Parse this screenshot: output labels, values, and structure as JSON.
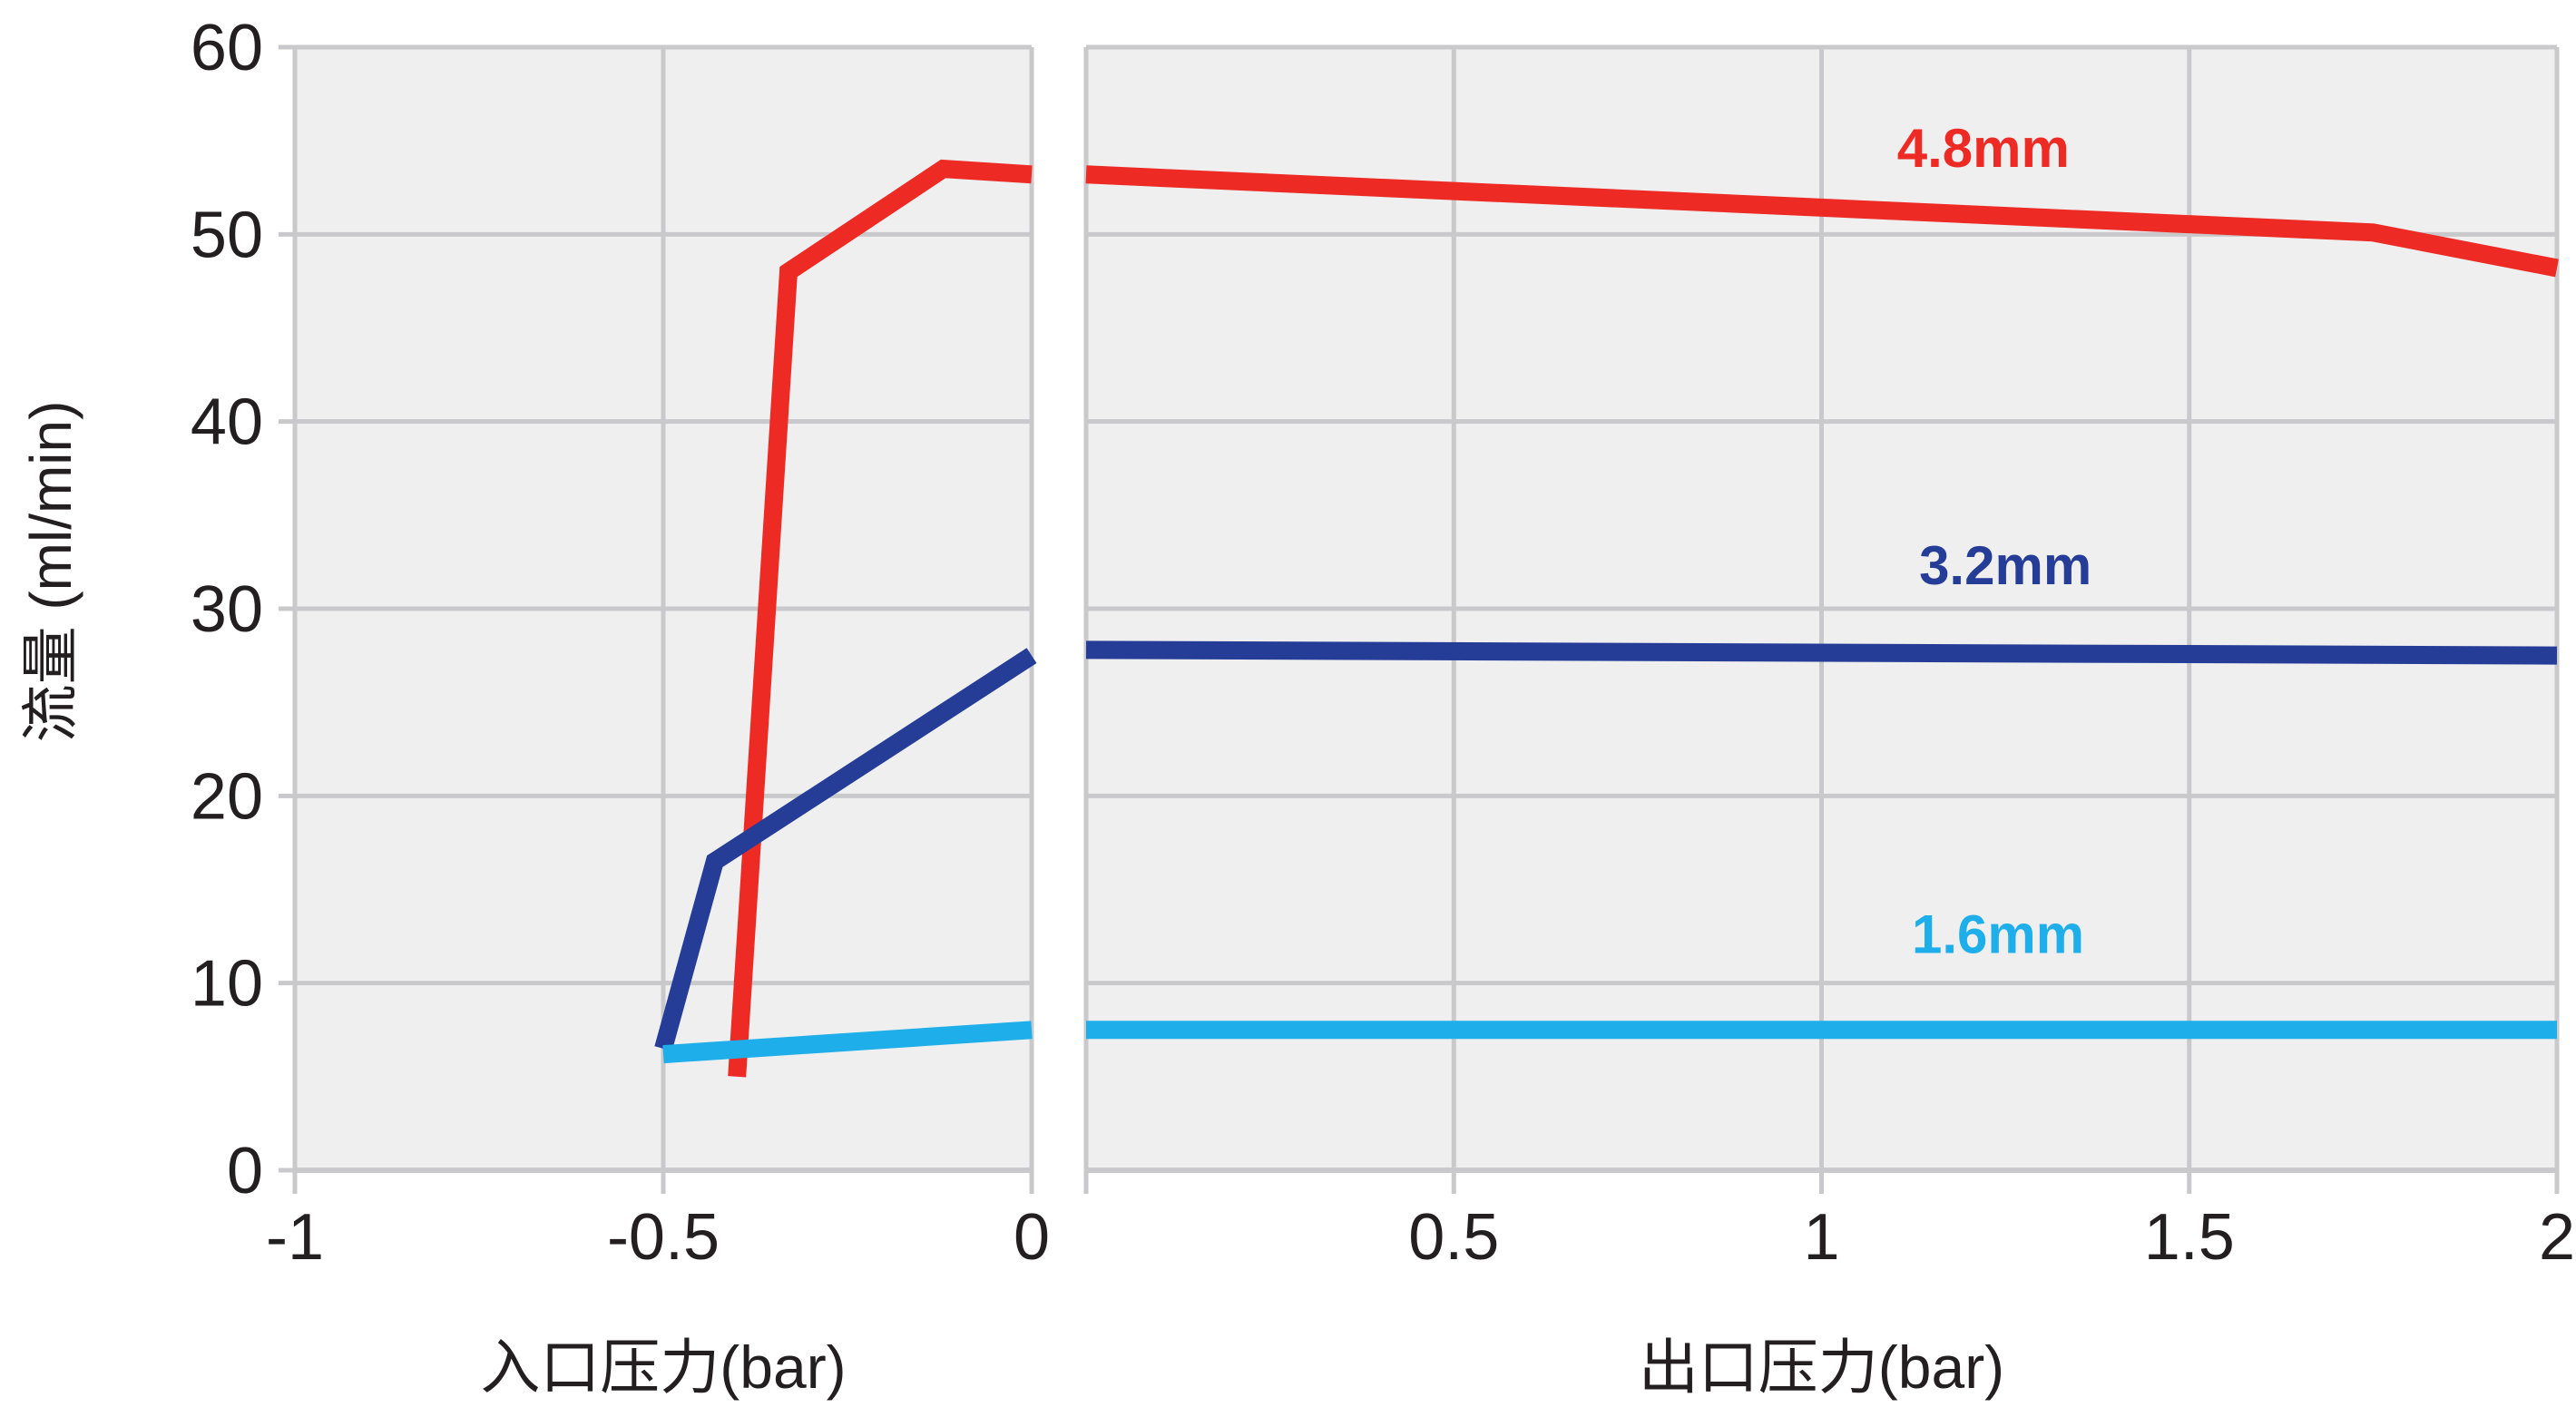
{
  "chart_data": {
    "type": "line",
    "ylabel": "流量 (ml/min)",
    "ylim": [
      0,
      60
    ],
    "yticks": [
      0,
      10,
      20,
      30,
      40,
      50,
      60
    ],
    "grid": true,
    "panels": [
      {
        "id": "inlet",
        "xlabel": "入口压力(bar)",
        "xlim": [
          -1,
          0
        ],
        "xticks": [
          -1,
          -0.5,
          0
        ],
        "xtick_labels": [
          "-1",
          "-0.5",
          "0"
        ],
        "series": [
          {
            "name": "4.8mm",
            "color": "#ee2a24",
            "x": [
              -0.4,
              -0.33,
              -0.12,
              0
            ],
            "y": [
              5,
              48,
              53.5,
              53.2
            ]
          },
          {
            "name": "3.2mm",
            "color": "#263d97",
            "x": [
              -0.5,
              -0.43,
              0
            ],
            "y": [
              6.5,
              16.5,
              27.5
            ]
          },
          {
            "name": "1.6mm",
            "color": "#1eaee9",
            "x": [
              -0.5,
              0
            ],
            "y": [
              6.2,
              7.5
            ]
          }
        ]
      },
      {
        "id": "outlet",
        "xlabel": "出口压力(bar)",
        "xlim": [
          0,
          2
        ],
        "xticks": [
          0.5,
          1,
          1.5,
          2
        ],
        "xtick_labels": [
          "0.5",
          "1",
          "1.5",
          "2"
        ],
        "series": [
          {
            "name": "4.8mm",
            "color": "#ee2a24",
            "x": [
              0,
              1.75,
              2
            ],
            "y": [
              53.2,
              50.1,
              48.2
            ]
          },
          {
            "name": "3.2mm",
            "color": "#263d97",
            "x": [
              0,
              2
            ],
            "y": [
              27.8,
              27.5
            ]
          },
          {
            "name": "1.6mm",
            "color": "#1eaee9",
            "x": [
              0,
              2
            ],
            "y": [
              7.5,
              7.5
            ]
          }
        ]
      }
    ],
    "annotations": [
      {
        "text": "4.8mm",
        "color": "#ee2a24",
        "x": 1.22,
        "y": 53.6
      },
      {
        "text": "3.2mm",
        "color": "#263d97",
        "x": 1.25,
        "y": 31.3
      },
      {
        "text": "1.6mm",
        "color": "#1eaee9",
        "x": 1.24,
        "y": 11.6
      }
    ]
  }
}
